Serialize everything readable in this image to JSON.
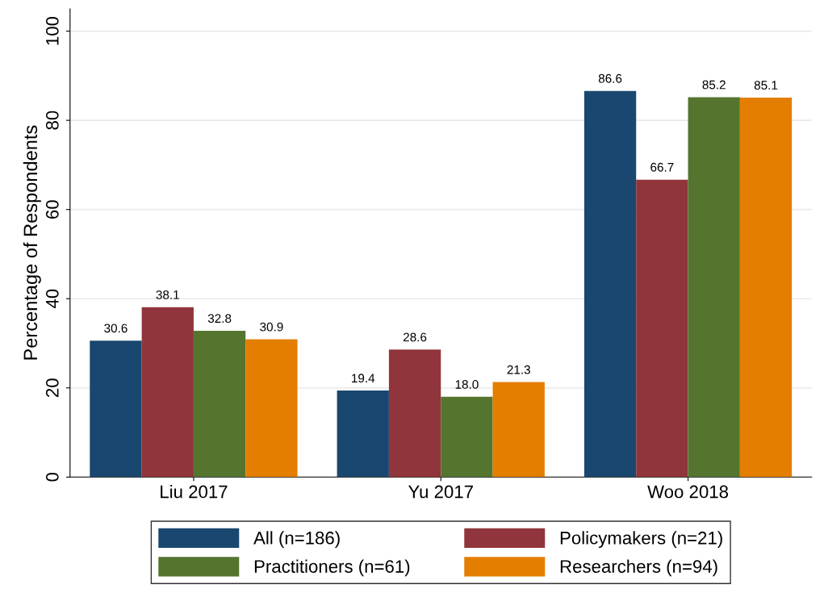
{
  "chart_data": {
    "type": "bar",
    "ylabel": "Percentage of Respondents",
    "categories": [
      "Liu 2017",
      "Yu 2017",
      "Woo 2018"
    ],
    "series": [
      {
        "name": "All (n=186)",
        "color": "#1a476f",
        "values": [
          30.6,
          19.4,
          86.6
        ],
        "value_labels": [
          "30.6",
          "19.4",
          "86.6"
        ]
      },
      {
        "name": "Policymakers (n=21)",
        "color": "#90353b",
        "values": [
          38.1,
          28.6,
          66.7
        ],
        "value_labels": [
          "38.1",
          "28.6",
          "66.7"
        ]
      },
      {
        "name": "Practitioners (n=61)",
        "color": "#55752f",
        "values": [
          32.8,
          18.0,
          85.2
        ],
        "value_labels": [
          "32.8",
          "18.0",
          "85.2"
        ]
      },
      {
        "name": "Researchers (n=94)",
        "color": "#e37e00",
        "values": [
          30.9,
          21.3,
          85.1
        ],
        "value_labels": [
          "30.9",
          "21.3",
          "85.1"
        ]
      }
    ],
    "ylim": [
      0,
      105
    ],
    "yticks": [
      0,
      20,
      40,
      60,
      80,
      100
    ],
    "grid": "y",
    "legend": "bottom"
  }
}
